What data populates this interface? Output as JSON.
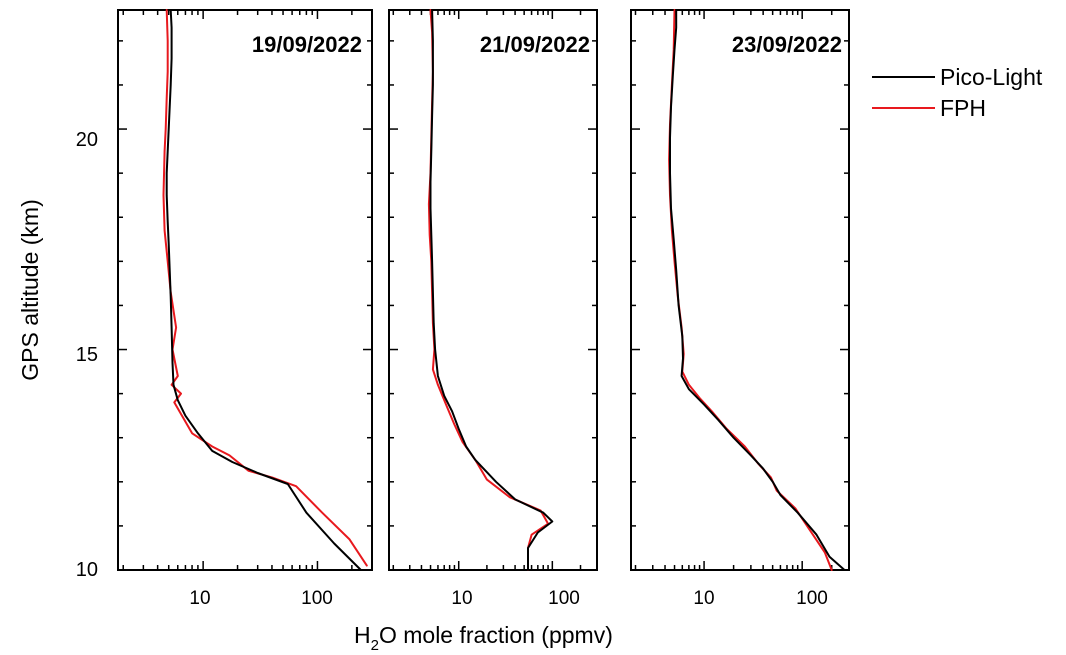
{
  "chart_data": {
    "type": "line",
    "ylabel": "GPS altitude (km)",
    "xlabel_parts": [
      "H",
      "2",
      "O mole fraction (ppmv)"
    ],
    "x_scale": "log",
    "y_ticks": [
      "10",
      "15",
      "20"
    ],
    "x_ticks": [
      "10",
      "100"
    ],
    "legend": {
      "placement": "top-right, outside panels",
      "entries": [
        {
          "name": "Pico-Light",
          "color": "#000000"
        },
        {
          "name": "FPH",
          "color": "#e8191e"
        }
      ]
    },
    "panels": [
      {
        "date": "19/09/2022",
        "xlim": [
          1.8,
          300
        ],
        "ylim": [
          10,
          22.7
        ],
        "series": [
          {
            "name": "Pico-Light",
            "color": "#000000",
            "x": [
              240,
              140,
              80,
              55,
              30,
              18,
              12,
              9,
              7,
              6.0,
              5.5,
              5.4,
              5.3,
              5.2,
              5.1,
              5.0,
              4.9,
              4.8,
              4.8,
              4.9,
              5.0,
              5.1,
              5.2,
              5.3,
              5.3,
              5.2
            ],
            "y": [
              10.0,
              10.6,
              11.3,
              11.95,
              12.2,
              12.45,
              12.7,
              13.1,
              13.5,
              13.85,
              14.2,
              14.7,
              15.5,
              16.2,
              16.8,
              17.4,
              17.9,
              18.5,
              19.0,
              19.5,
              20.0,
              20.5,
              21.0,
              21.6,
              22.3,
              22.7
            ]
          },
          {
            "name": "FPH",
            "color": "#e8191e",
            "x": [
              270,
              190,
              110,
              65,
              40,
              25,
              17,
              12,
              8,
              5.6,
              6.4,
              5.3,
              6.0,
              5.4,
              5.8,
              5.2,
              4.9,
              4.6,
              4.5,
              4.6,
              4.7,
              4.8,
              4.9,
              4.9,
              4.8
            ],
            "y": [
              10.1,
              10.7,
              11.3,
              11.9,
              12.1,
              12.25,
              12.6,
              12.8,
              13.1,
              13.8,
              14.0,
              14.2,
              14.4,
              15.0,
              15.5,
              16.3,
              17.0,
              17.7,
              18.5,
              19.5,
              20.0,
              20.7,
              21.3,
              22.0,
              22.7
            ]
          }
        ]
      },
      {
        "date": "21/09/2022",
        "xlim": [
          1.8,
          300
        ],
        "ylim": [
          10,
          22.7
        ],
        "series": [
          {
            "name": "Pico-Light",
            "color": "#000000",
            "x": [
              55,
              55,
              70,
              100,
              80,
              40,
              25,
              15,
              12,
              10,
              8.5,
              7,
              6.0,
              5.6,
              5.4,
              5.3,
              5.2,
              5.1,
              5.0,
              5.0,
              5.1,
              5.2,
              5.3,
              5.3,
              5.2
            ],
            "y": [
              10.0,
              10.5,
              10.85,
              11.1,
              11.3,
              11.6,
              12.0,
              12.5,
              12.8,
              13.2,
              13.6,
              13.95,
              14.4,
              15.0,
              15.6,
              16.3,
              17.0,
              17.6,
              18.2,
              18.8,
              19.5,
              20.3,
              21.0,
              22.0,
              22.7
            ]
          },
          {
            "name": "FPH",
            "color": "#e8191e",
            "x": [
              55,
              55,
              60,
              90,
              75,
              35,
              20,
              15,
              11,
              9,
              7.5,
              6.0,
              5.3,
              5.5,
              5.3,
              5.2,
              5.1,
              4.9,
              4.8,
              5.0,
              5.1,
              5.2,
              5.3,
              5.2,
              5.0
            ],
            "y": [
              10.0,
              10.5,
              10.8,
              11.05,
              11.35,
              11.65,
              12.05,
              12.5,
              12.9,
              13.3,
              13.7,
              14.2,
              14.55,
              15.0,
              15.6,
              16.3,
              17.0,
              17.6,
              18.3,
              19.0,
              19.8,
              20.6,
              21.3,
              22.2,
              22.7
            ]
          }
        ]
      },
      {
        "date": "23/09/2022",
        "xlim": [
          1.8,
          300
        ],
        "ylim": [
          10,
          22.7
        ],
        "series": [
          {
            "name": "Pico-Light",
            "color": "#000000",
            "x": [
              270,
              190,
              140,
              90,
              60,
              50,
              40,
              30,
              20,
              14,
              10,
              7,
              5.9,
              6.1,
              6.0,
              5.5,
              5.2,
              4.9,
              4.6,
              4.5,
              4.5,
              4.6,
              4.8,
              5.0,
              5.2,
              5.2
            ],
            "y": [
              10.0,
              10.3,
              10.8,
              11.3,
              11.7,
              12.0,
              12.3,
              12.6,
              13.0,
              13.4,
              13.75,
              14.1,
              14.4,
              14.8,
              15.3,
              16.0,
              16.8,
              17.5,
              18.2,
              19.0,
              19.8,
              20.5,
              21.2,
              21.8,
              22.3,
              22.7
            ]
          },
          {
            "name": "FPH",
            "color": "#e8191e",
            "x": [
              200,
              170,
              120,
              85,
              55,
              48,
              36,
              26,
              17,
              12,
              9,
              7,
              6.0,
              6.2,
              5.9,
              5.4,
              5.0,
              4.7,
              4.5,
              4.4,
              4.5,
              4.7,
              4.9,
              5.0
            ],
            "y": [
              10.0,
              10.4,
              10.9,
              11.4,
              11.8,
              12.1,
              12.4,
              12.8,
              13.2,
              13.6,
              13.9,
              14.2,
              14.5,
              14.9,
              15.5,
              16.2,
              17.0,
              17.7,
              18.5,
              19.3,
              20.1,
              21.0,
              21.8,
              22.7
            ]
          }
        ]
      }
    ]
  }
}
